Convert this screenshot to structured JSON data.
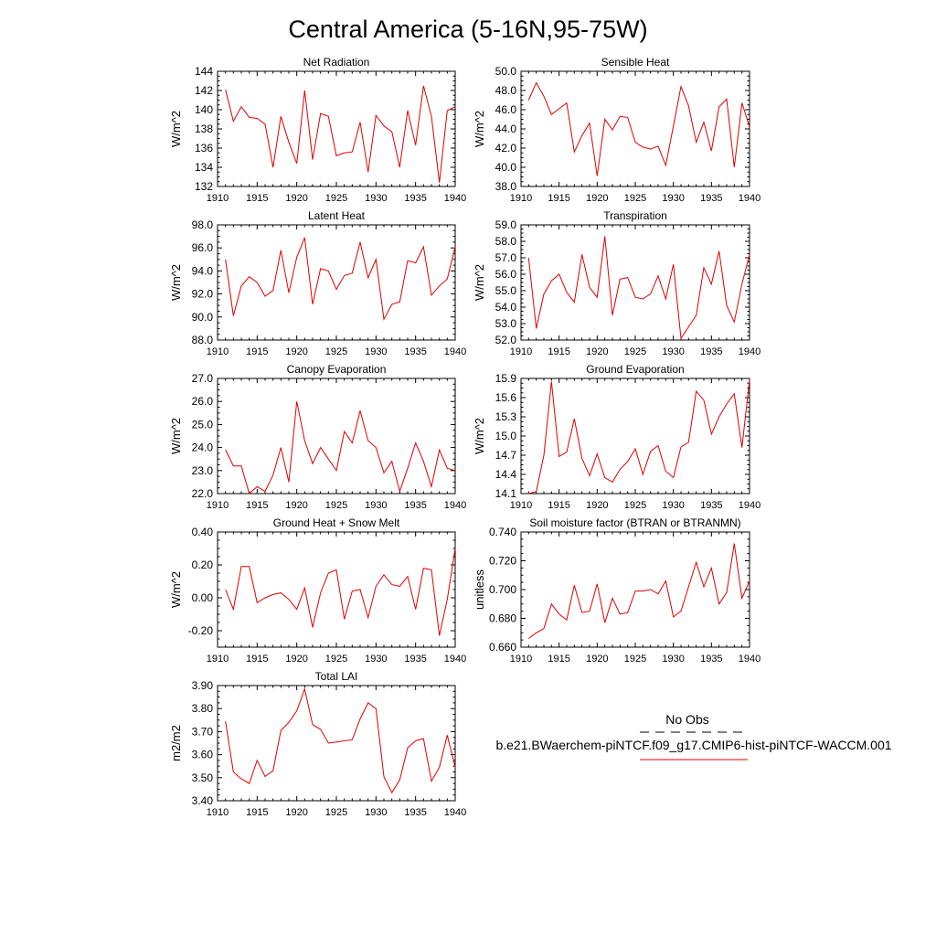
{
  "figure": {
    "title": "Central America (5-16N,95-75W)"
  },
  "legend": {
    "obs_label": "No Obs",
    "model_label": "b.e21.BWaerchem-piNTCF.f09_g17.CMIP6-hist-piNTCF-WACCM.001",
    "obs_color": "#000000",
    "model_color": "#e00000"
  },
  "chart_data": [
    {
      "type": "line",
      "title": "Net Radiation",
      "ylabel": "W/m^2",
      "xlim": [
        1910,
        1940
      ],
      "ylim": [
        132,
        144
      ],
      "xticks": [
        "1910",
        "1915",
        "1920",
        "1925",
        "1930",
        "1935",
        "1940"
      ],
      "yticks": [
        "132",
        "134",
        "136",
        "138",
        "140",
        "142",
        "144"
      ],
      "grid": false,
      "series": [
        {
          "x": [
            1911,
            1912,
            1913,
            1914,
            1915,
            1916,
            1917,
            1918,
            1919,
            1920,
            1921,
            1922,
            1923,
            1924,
            1925,
            1926,
            1927,
            1928,
            1929,
            1930,
            1931,
            1932,
            1933,
            1934,
            1935,
            1936,
            1937,
            1938,
            1939,
            1940
          ],
          "values": [
            142.1,
            138.8,
            140.3,
            139.2,
            139.1,
            138.5,
            134.0,
            139.3,
            136.6,
            134.4,
            142.0,
            134.8,
            139.6,
            139.3,
            135.2,
            135.5,
            135.6,
            138.7,
            133.5,
            139.4,
            138.3,
            137.7,
            134.0,
            139.9,
            136.3,
            142.5,
            139.3,
            132.4,
            139.9,
            140.3
          ]
        }
      ]
    },
    {
      "type": "line",
      "title": "Sensible Heat",
      "ylabel": "W/m^2",
      "xlim": [
        1910,
        1940
      ],
      "ylim": [
        38.0,
        50.0
      ],
      "xticks": [
        "1910",
        "1915",
        "1920",
        "1925",
        "1930",
        "1935",
        "1940"
      ],
      "yticks": [
        "38.0",
        "40.0",
        "42.0",
        "44.0",
        "46.0",
        "48.0",
        "50.0"
      ],
      "grid": false,
      "series": [
        {
          "x": [
            1911,
            1912,
            1913,
            1914,
            1915,
            1916,
            1917,
            1918,
            1919,
            1920,
            1921,
            1922,
            1923,
            1924,
            1925,
            1926,
            1927,
            1928,
            1929,
            1930,
            1931,
            1932,
            1933,
            1934,
            1935,
            1936,
            1937,
            1938,
            1939,
            1940
          ],
          "values": [
            47.0,
            48.8,
            47.4,
            45.5,
            46.1,
            46.7,
            41.6,
            43.3,
            44.6,
            39.1,
            45.0,
            43.9,
            45.3,
            45.2,
            42.6,
            42.1,
            41.9,
            42.2,
            40.2,
            44.3,
            48.4,
            46.4,
            42.6,
            44.7,
            41.7,
            46.3,
            47.1,
            40.0,
            46.7,
            44.2
          ]
        }
      ]
    },
    {
      "type": "line",
      "title": "Latent Heat",
      "ylabel": "W/m^2",
      "xlim": [
        1910,
        1940
      ],
      "ylim": [
        88.0,
        98.0
      ],
      "xticks": [
        "1910",
        "1915",
        "1920",
        "1925",
        "1930",
        "1935",
        "1940"
      ],
      "yticks": [
        "88.0",
        "90.0",
        "92.0",
        "94.0",
        "96.0",
        "98.0"
      ],
      "grid": false,
      "series": [
        {
          "x": [
            1911,
            1912,
            1913,
            1914,
            1915,
            1916,
            1917,
            1918,
            1919,
            1920,
            1921,
            1922,
            1923,
            1924,
            1925,
            1926,
            1927,
            1928,
            1929,
            1930,
            1931,
            1932,
            1933,
            1934,
            1935,
            1936,
            1937,
            1938,
            1939,
            1940
          ],
          "values": [
            95.0,
            90.1,
            92.7,
            93.5,
            93.0,
            91.8,
            92.3,
            95.8,
            92.1,
            95.2,
            96.9,
            91.1,
            94.2,
            94.0,
            92.4,
            93.6,
            93.8,
            96.5,
            93.4,
            95.0,
            89.8,
            91.1,
            91.3,
            94.9,
            94.7,
            96.1,
            91.9,
            92.7,
            93.3,
            96.1
          ]
        }
      ]
    },
    {
      "type": "line",
      "title": "Transpiration",
      "ylabel": "W/m^2",
      "xlim": [
        1910,
        1940
      ],
      "ylim": [
        52.0,
        59.0
      ],
      "xticks": [
        "1910",
        "1915",
        "1920",
        "1925",
        "1930",
        "1935",
        "1940"
      ],
      "yticks": [
        "52.0",
        "53.0",
        "54.0",
        "55.0",
        "56.0",
        "57.0",
        "58.0",
        "59.0"
      ],
      "grid": false,
      "series": [
        {
          "x": [
            1911,
            1912,
            1913,
            1914,
            1915,
            1916,
            1917,
            1918,
            1919,
            1920,
            1921,
            1922,
            1923,
            1924,
            1925,
            1926,
            1927,
            1928,
            1929,
            1930,
            1931,
            1932,
            1933,
            1934,
            1935,
            1936,
            1937,
            1938,
            1939,
            1940
          ],
          "values": [
            57.0,
            52.7,
            54.8,
            55.6,
            56.0,
            54.9,
            54.3,
            57.2,
            55.2,
            54.6,
            58.3,
            53.5,
            55.7,
            55.8,
            54.6,
            54.5,
            54.8,
            55.9,
            54.5,
            56.6,
            52.1,
            52.8,
            53.5,
            56.4,
            55.4,
            57.4,
            54.1,
            53.1,
            55.4,
            57.2
          ]
        }
      ]
    },
    {
      "type": "line",
      "title": "Canopy Evaporation",
      "ylabel": "W/m^2",
      "xlim": [
        1910,
        1940
      ],
      "ylim": [
        22.0,
        27.0
      ],
      "xticks": [
        "1910",
        "1915",
        "1920",
        "1925",
        "1930",
        "1935",
        "1940"
      ],
      "yticks": [
        "22.0",
        "23.0",
        "24.0",
        "25.0",
        "26.0",
        "27.0"
      ],
      "grid": false,
      "series": [
        {
          "x": [
            1911,
            1912,
            1913,
            1914,
            1915,
            1916,
            1917,
            1918,
            1919,
            1920,
            1921,
            1922,
            1923,
            1924,
            1925,
            1926,
            1927,
            1928,
            1929,
            1930,
            1931,
            1932,
            1933,
            1934,
            1935,
            1936,
            1937,
            1938,
            1939,
            1940
          ],
          "values": [
            23.9,
            23.2,
            23.2,
            22.0,
            22.3,
            22.1,
            22.8,
            24.0,
            22.5,
            26.0,
            24.3,
            23.3,
            24.0,
            23.5,
            23.0,
            24.7,
            24.2,
            25.6,
            24.3,
            24.0,
            22.9,
            23.4,
            22.1,
            23.1,
            24.2,
            23.4,
            22.3,
            23.9,
            23.1,
            23.0
          ]
        }
      ]
    },
    {
      "type": "line",
      "title": "Ground Evaporation",
      "ylabel": "W/m^2",
      "xlim": [
        1910,
        1940
      ],
      "ylim": [
        14.1,
        15.9
      ],
      "xticks": [
        "1910",
        "1915",
        "1920",
        "1925",
        "1930",
        "1935",
        "1940"
      ],
      "yticks": [
        "14.1",
        "14.4",
        "14.7",
        "15.0",
        "15.3",
        "15.6",
        "15.9"
      ],
      "grid": false,
      "series": [
        {
          "x": [
            1911,
            1912,
            1913,
            1914,
            1915,
            1916,
            1917,
            1918,
            1919,
            1920,
            1921,
            1922,
            1923,
            1924,
            1925,
            1926,
            1927,
            1928,
            1929,
            1930,
            1931,
            1932,
            1933,
            1934,
            1935,
            1936,
            1937,
            1938,
            1939,
            1940
          ],
          "values": [
            14.1,
            14.13,
            14.7,
            15.85,
            14.68,
            14.75,
            15.27,
            14.65,
            14.38,
            14.72,
            14.35,
            14.28,
            14.48,
            14.6,
            14.8,
            14.4,
            14.76,
            14.85,
            14.45,
            14.35,
            14.83,
            14.9,
            15.7,
            15.56,
            15.03,
            15.3,
            15.5,
            15.66,
            14.82,
            15.88
          ]
        }
      ]
    },
    {
      "type": "line",
      "title": "Ground Heat + Snow Melt",
      "ylabel": "W/m^2",
      "xlim": [
        1910,
        1940
      ],
      "ylim": [
        -0.3,
        0.4
      ],
      "xticks": [
        "1910",
        "1915",
        "1920",
        "1925",
        "1930",
        "1935",
        "1940"
      ],
      "yticks": [
        "-0.20",
        "0.00",
        "0.20",
        "0.40"
      ],
      "grid": false,
      "series": [
        {
          "x": [
            1911,
            1912,
            1913,
            1914,
            1915,
            1916,
            1917,
            1918,
            1919,
            1920,
            1921,
            1922,
            1923,
            1924,
            1925,
            1926,
            1927,
            1928,
            1929,
            1930,
            1931,
            1932,
            1933,
            1934,
            1935,
            1936,
            1937,
            1938,
            1939,
            1940
          ],
          "values": [
            0.05,
            -0.07,
            0.19,
            0.19,
            -0.03,
            0.0,
            0.02,
            0.03,
            -0.01,
            -0.07,
            0.06,
            -0.18,
            0.03,
            0.15,
            0.17,
            -0.13,
            0.04,
            0.05,
            -0.12,
            0.07,
            0.14,
            0.08,
            0.07,
            0.13,
            -0.07,
            0.18,
            0.17,
            -0.23,
            -0.01,
            0.3
          ]
        }
      ]
    },
    {
      "type": "line",
      "title": "Soil moisture factor (BTRAN or BTRANMN)",
      "ylabel": "unitless",
      "xlim": [
        1910,
        1940
      ],
      "ylim": [
        0.66,
        0.74
      ],
      "xticks": [
        "1910",
        "1915",
        "1920",
        "1925",
        "1930",
        "1935",
        "1940"
      ],
      "yticks": [
        "0.660",
        "0.680",
        "0.700",
        "0.720",
        "0.740"
      ],
      "grid": false,
      "series": [
        {
          "x": [
            1911,
            1912,
            1913,
            1914,
            1915,
            1916,
            1917,
            1918,
            1919,
            1920,
            1921,
            1922,
            1923,
            1924,
            1925,
            1926,
            1927,
            1928,
            1929,
            1930,
            1931,
            1932,
            1933,
            1934,
            1935,
            1936,
            1937,
            1938,
            1939,
            1940
          ],
          "values": [
            0.666,
            0.67,
            0.673,
            0.69,
            0.683,
            0.679,
            0.703,
            0.684,
            0.685,
            0.704,
            0.677,
            0.694,
            0.683,
            0.684,
            0.699,
            0.699,
            0.7,
            0.697,
            0.706,
            0.681,
            0.685,
            0.702,
            0.719,
            0.702,
            0.715,
            0.69,
            0.698,
            0.732,
            0.694,
            0.706
          ]
        }
      ]
    },
    {
      "type": "line",
      "title": "Total LAI",
      "ylabel": "m2/m2",
      "xlim": [
        1910,
        1940
      ],
      "ylim": [
        3.4,
        3.9
      ],
      "xticks": [
        "1910",
        "1915",
        "1920",
        "1925",
        "1930",
        "1935",
        "1940"
      ],
      "yticks": [
        "3.40",
        "3.50",
        "3.60",
        "3.70",
        "3.80",
        "3.90"
      ],
      "grid": false,
      "series": [
        {
          "x": [
            1911,
            1912,
            1913,
            1914,
            1915,
            1916,
            1917,
            1918,
            1919,
            1920,
            1921,
            1922,
            1923,
            1924,
            1925,
            1926,
            1927,
            1928,
            1929,
            1930,
            1931,
            1932,
            1933,
            1934,
            1935,
            1936,
            1937,
            1938,
            1939,
            1940
          ],
          "values": [
            3.745,
            3.525,
            3.495,
            3.475,
            3.575,
            3.505,
            3.53,
            3.705,
            3.74,
            3.79,
            3.885,
            3.73,
            3.71,
            3.65,
            3.655,
            3.66,
            3.665,
            3.755,
            3.825,
            3.8,
            3.505,
            3.435,
            3.49,
            3.63,
            3.66,
            3.67,
            3.485,
            3.545,
            3.685,
            3.545
          ]
        }
      ]
    }
  ]
}
